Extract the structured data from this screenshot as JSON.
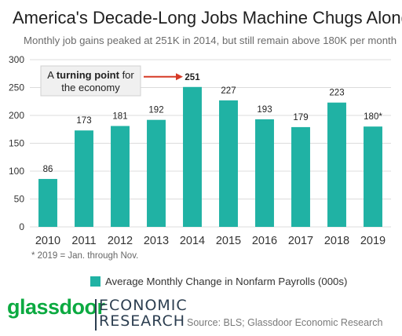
{
  "header": {
    "title": "America's Decade-Long Jobs Machine Chugs Along",
    "subtitle": "Monthly job gains peaked at 251K in 2014, but still remain above 180K per month"
  },
  "chart_data": {
    "type": "bar",
    "categories": [
      "2010",
      "2011",
      "2012",
      "2013",
      "2014",
      "2015",
      "2016",
      "2017",
      "2018",
      "2019"
    ],
    "values": [
      86,
      173,
      181,
      192,
      251,
      227,
      193,
      179,
      223,
      180
    ],
    "value_labels": [
      "86",
      "173",
      "181",
      "192",
      "251",
      "227",
      "193",
      "179",
      "223",
      "180*"
    ],
    "ylim": [
      0,
      300
    ],
    "yticks": [
      0,
      50,
      100,
      150,
      200,
      250,
      300
    ],
    "grid": true,
    "legend_position": "bottom",
    "series": [
      {
        "name": "Average Monthly Change in Nonfarm Payrolls (000s)",
        "values": [
          86,
          173,
          181,
          192,
          251,
          227,
          193,
          179,
          223,
          180
        ]
      }
    ],
    "highlight_index": 4,
    "annotation": {
      "pre": "A ",
      "bold": "turning point",
      "post": " for",
      "line2": "the economy"
    }
  },
  "colors": {
    "bar": "#20b2a4",
    "grid": "#dcdcdc",
    "arrow": "#d63a26",
    "logo_green": "#0caa41",
    "logo_bar": "#2c3e50"
  },
  "footnote": "* 2019 = Jan. through Nov.",
  "branding": {
    "logo": "glassdoor",
    "line1": "ECONOMIC",
    "line2": "RESEARCH"
  },
  "source": "Source: BLS; Glassdoor Economic Research"
}
